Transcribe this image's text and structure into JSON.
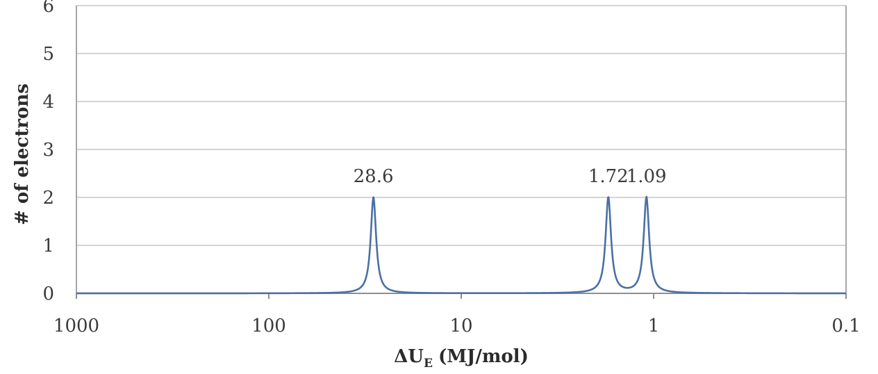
{
  "chart_data": {
    "type": "line",
    "title": "",
    "xlabel": "ΔU",
    "xlabel_subscript": "E",
    "xlabel_units": "(MJ/mol)",
    "ylabel": "# of electrons",
    "x_scale": "log",
    "x_reversed": true,
    "xlim": [
      1000,
      0.1
    ],
    "ylim": [
      0,
      6
    ],
    "x_ticks": [
      1000,
      100,
      10,
      1,
      0.1
    ],
    "x_tick_labels": [
      "1000",
      "100",
      "10",
      "1",
      "0.1"
    ],
    "y_ticks": [
      0,
      1,
      2,
      3,
      4,
      5,
      6
    ],
    "y_tick_labels": [
      "0",
      "1",
      "2",
      "3",
      "4",
      "5",
      "6"
    ],
    "grid": true,
    "legend": "none",
    "line_color": "#4a6fa5",
    "peaks": [
      {
        "x": 28.6,
        "y": 2,
        "label": "28.6"
      },
      {
        "x": 1.72,
        "y": 2,
        "label": "1.72"
      },
      {
        "x": 1.09,
        "y": 2,
        "label": "1.09"
      }
    ]
  }
}
